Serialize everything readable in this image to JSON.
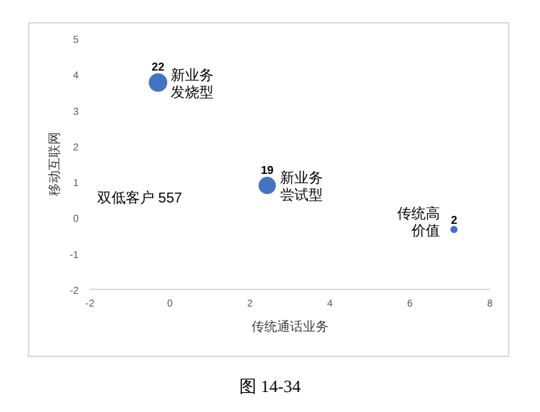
{
  "chart_data": {
    "type": "bubble",
    "xlabel": "传统通话业务",
    "ylabel": "移动互联网",
    "x": [
      -0.3,
      2.43,
      7.1
    ],
    "values": [
      3.77,
      0.9,
      -0.33
    ],
    "sizes": [
      22,
      19,
      2
    ],
    "value_labels": [
      "22",
      "19",
      "2"
    ],
    "color": "#4472c4",
    "xlim": [
      -2,
      8
    ],
    "xticks": [
      -2,
      0,
      2,
      4,
      6,
      8
    ],
    "ylim": [
      -2,
      5
    ],
    "yticks": [
      -2,
      -1,
      0,
      1,
      2,
      3,
      4,
      5
    ],
    "grid": false,
    "annotations": [
      {
        "text": "新业务发烧型",
        "x": -0.3,
        "y": 3.77
      },
      {
        "text": "新业务尝试型",
        "x": 2.43,
        "y": 0.9
      },
      {
        "text": "传统高价值",
        "x": 7.1,
        "y": -0.33
      },
      "双低客户 557",
      "图 14-34"
    ]
  }
}
